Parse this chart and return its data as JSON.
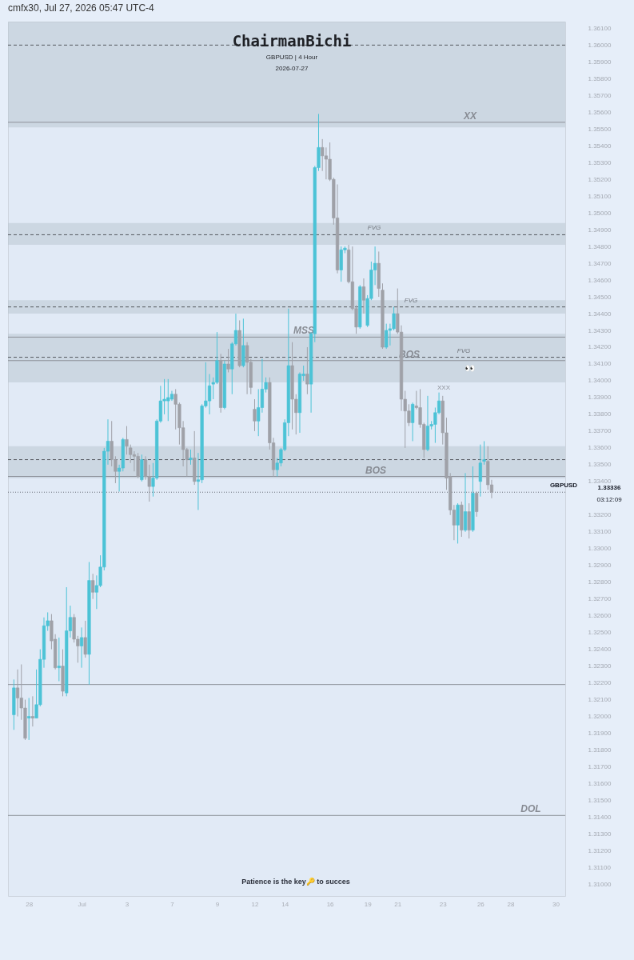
{
  "chart_data": {
    "type": "candlestick",
    "title": "ChairmanBichi",
    "subtitle": "GBPUSD | 4 Hour\n2026-07-27",
    "categories": [
      null,
      null,
      null,
      null,
      "28",
      null,
      null,
      null,
      null,
      null,
      null,
      null,
      null,
      null,
      null,
      null,
      null,
      null,
      "Jul",
      null,
      null,
      null,
      null,
      null,
      null,
      null,
      null,
      null,
      null,
      null,
      "3",
      null,
      null,
      null,
      null,
      null,
      null,
      null,
      null,
      null,
      null,
      null,
      "7",
      null,
      null,
      null,
      null,
      null,
      null,
      null,
      null,
      null,
      null,
      null,
      "9",
      null,
      null,
      null,
      null,
      null,
      null,
      null,
      null,
      null,
      "12",
      null,
      null,
      null,
      null,
      null,
      null,
      null,
      "14",
      null,
      null,
      null,
      null,
      null,
      null,
      null,
      null,
      null,
      null,
      null,
      "16",
      null,
      null,
      null,
      null,
      null,
      null,
      null,
      null,
      null,
      "19",
      null,
      null,
      null,
      null,
      null,
      null,
      null,
      "21",
      null,
      null,
      null,
      null,
      null,
      null,
      null,
      null,
      null,
      null,
      null,
      "23",
      null,
      null,
      null,
      null,
      null,
      null,
      null,
      null,
      null,
      "26",
      null,
      null,
      null,
      null,
      null,
      null,
      null,
      "28",
      null,
      null,
      null,
      null,
      null,
      null,
      null,
      null,
      null,
      null,
      null,
      "30",
      null
    ],
    "ohlc": [
      [
        1.3201,
        1.3222,
        1.3192,
        1.3217
      ],
      [
        1.3217,
        1.3228,
        1.32,
        1.3211
      ],
      [
        1.3211,
        1.3231,
        1.3198,
        1.3205
      ],
      [
        1.3205,
        1.321,
        1.3186,
        1.3187
      ],
      [
        1.3199,
        1.3211,
        1.3186,
        1.32
      ],
      [
        1.32,
        1.3212,
        1.3194,
        1.3199
      ],
      [
        1.3199,
        1.3228,
        1.3199,
        1.3207
      ],
      [
        1.3207,
        1.324,
        1.3206,
        1.3234
      ],
      [
        1.3234,
        1.3259,
        1.3229,
        1.3254
      ],
      [
        1.3254,
        1.3262,
        1.3251,
        1.3257
      ],
      [
        1.3257,
        1.3261,
        1.324,
        1.3245
      ],
      [
        1.3246,
        1.3249,
        1.3228,
        1.3229
      ],
      [
        1.3229,
        1.3247,
        1.3221,
        1.323
      ],
      [
        1.323,
        1.324,
        1.3212,
        1.3215
      ],
      [
        1.3214,
        1.3277,
        1.3212,
        1.3251
      ],
      [
        1.3251,
        1.3266,
        1.3247,
        1.3259
      ],
      [
        1.3259,
        1.3261,
        1.3244,
        1.3246
      ],
      [
        1.3246,
        1.3248,
        1.3232,
        1.3242
      ],
      [
        1.3242,
        1.3253,
        1.3229,
        1.3247
      ],
      [
        1.3247,
        1.3257,
        1.3235,
        1.3237
      ],
      [
        1.3237,
        1.3292,
        1.3219,
        1.3281
      ],
      [
        1.3281,
        1.3285,
        1.327,
        1.3274
      ],
      [
        1.3274,
        1.3284,
        1.3264,
        1.3278
      ],
      [
        1.3278,
        1.3296,
        1.3277,
        1.3289
      ],
      [
        1.3289,
        1.336,
        1.3287,
        1.3358
      ],
      [
        1.3358,
        1.3377,
        1.335,
        1.3364
      ],
      [
        1.3364,
        1.3376,
        1.3349,
        1.3353
      ],
      [
        1.3353,
        1.3355,
        1.3339,
        1.3346
      ],
      [
        1.3346,
        1.335,
        1.3334,
        1.3348
      ],
      [
        1.3348,
        1.3366,
        1.3346,
        1.3365
      ],
      [
        1.3365,
        1.3373,
        1.3356,
        1.3361
      ],
      [
        1.336,
        1.3362,
        1.3351,
        1.3356
      ],
      [
        1.3356,
        1.3358,
        1.3346,
        1.3355
      ],
      [
        1.3355,
        1.3357,
        1.3342,
        1.3343
      ],
      [
        1.3341,
        1.3356,
        1.334,
        1.3353
      ],
      [
        1.3353,
        1.3355,
        1.3341,
        1.3343
      ],
      [
        1.3343,
        1.335,
        1.3328,
        1.3337
      ],
      [
        1.3337,
        1.3351,
        1.3331,
        1.3342
      ],
      [
        1.3342,
        1.3377,
        1.3341,
        1.3376
      ],
      [
        1.3376,
        1.3397,
        1.3375,
        1.3388
      ],
      [
        1.3388,
        1.3401,
        1.338,
        1.3389
      ],
      [
        1.3388,
        1.3401,
        1.3376,
        1.339
      ],
      [
        1.3389,
        1.3394,
        1.3388,
        1.3392
      ],
      [
        1.3392,
        1.3395,
        1.3371,
        1.3386
      ],
      [
        1.3386,
        1.3387,
        1.3362,
        1.3372
      ],
      [
        1.3372,
        1.3376,
        1.3349,
        1.3359
      ],
      [
        1.3359,
        1.336,
        1.3343,
        1.3353
      ],
      [
        1.3353,
        1.3359,
        1.335,
        1.3354
      ],
      [
        1.3354,
        1.337,
        1.3338,
        1.334
      ],
      [
        1.334,
        1.3357,
        1.3323,
        1.3341
      ],
      [
        1.3341,
        1.3386,
        1.3339,
        1.3385
      ],
      [
        1.3385,
        1.3411,
        1.3384,
        1.3388
      ],
      [
        1.3388,
        1.3404,
        1.338,
        1.3397
      ],
      [
        1.3398,
        1.3402,
        1.3389,
        1.3399
      ],
      [
        1.3399,
        1.3429,
        1.3398,
        1.3412
      ],
      [
        1.3412,
        1.3416,
        1.3381,
        1.3384
      ],
      [
        1.3384,
        1.3412,
        1.3383,
        1.341
      ],
      [
        1.341,
        1.3419,
        1.3405,
        1.3407
      ],
      [
        1.3407,
        1.3423,
        1.3392,
        1.3422
      ],
      [
        1.3422,
        1.344,
        1.3421,
        1.343
      ],
      [
        1.343,
        1.3436,
        1.3408,
        1.3409
      ],
      [
        1.3409,
        1.3437,
        1.3408,
        1.3421
      ],
      [
        1.3421,
        1.3423,
        1.3392,
        1.3411
      ],
      [
        1.3411,
        1.3413,
        1.3392,
        1.3396
      ],
      [
        1.3383,
        1.3389,
        1.337,
        1.3376
      ],
      [
        1.3376,
        1.3395,
        1.3367,
        1.3384
      ],
      [
        1.3384,
        1.3413,
        1.3381,
        1.3395
      ],
      [
        1.3395,
        1.3402,
        1.3393,
        1.3399
      ],
      [
        1.3399,
        1.3402,
        1.3359,
        1.3363
      ],
      [
        1.3363,
        1.3366,
        1.3343,
        1.3347
      ],
      [
        1.3347,
        1.3354,
        1.3343,
        1.3351
      ],
      [
        1.3351,
        1.336,
        1.3349,
        1.3359
      ],
      [
        1.3359,
        1.3377,
        1.3358,
        1.3375
      ],
      [
        1.3375,
        1.3443,
        1.3367,
        1.3409
      ],
      [
        1.3409,
        1.3423,
        1.3371,
        1.3389
      ],
      [
        1.3389,
        1.3392,
        1.3368,
        1.3381
      ],
      [
        1.3381,
        1.3405,
        1.3369,
        1.3404
      ],
      [
        1.3403,
        1.3409,
        1.34,
        1.3404
      ],
      [
        1.3404,
        1.342,
        1.3392,
        1.3398
      ],
      [
        1.3398,
        1.3429,
        1.3381,
        1.3428
      ],
      [
        1.3428,
        1.3528,
        1.3423,
        1.3527
      ],
      [
        1.3527,
        1.3559,
        1.3525,
        1.3539
      ],
      [
        1.3539,
        1.3544,
        1.3525,
        1.3534
      ],
      [
        1.3534,
        1.3539,
        1.352,
        1.3532
      ],
      [
        1.3532,
        1.3542,
        1.3519,
        1.352
      ],
      [
        1.352,
        1.3521,
        1.3493,
        1.3497
      ],
      [
        1.3497,
        1.3517,
        1.3464,
        1.3466
      ],
      [
        1.3466,
        1.348,
        1.3459,
        1.3478
      ],
      [
        1.3478,
        1.348,
        1.3476,
        1.3479
      ],
      [
        1.3478,
        1.3481,
        1.3458,
        1.3459
      ],
      [
        1.3459,
        1.348,
        1.3442,
        1.3443
      ],
      [
        1.3443,
        1.3445,
        1.3428,
        1.3432
      ],
      [
        1.3432,
        1.3457,
        1.3431,
        1.3456
      ],
      [
        1.3456,
        1.3461,
        1.344,
        1.3448
      ],
      [
        1.3433,
        1.3451,
        1.3432,
        1.3449
      ],
      [
        1.3449,
        1.3471,
        1.3448,
        1.3466
      ],
      [
        1.3466,
        1.348,
        1.3457,
        1.347
      ],
      [
        1.347,
        1.3477,
        1.345,
        1.3455
      ],
      [
        1.3454,
        1.3458,
        1.3419,
        1.342
      ],
      [
        1.342,
        1.3434,
        1.3419,
        1.343
      ],
      [
        1.343,
        1.3434,
        1.3421,
        1.3431
      ],
      [
        1.3431,
        1.3444,
        1.343,
        1.344
      ],
      [
        1.344,
        1.3455,
        1.3428,
        1.3429
      ],
      [
        1.3429,
        1.3433,
        1.3382,
        1.3389
      ],
      [
        1.3389,
        1.3394,
        1.336,
        1.3382
      ],
      [
        1.3382,
        1.3386,
        1.3373,
        1.3375
      ],
      [
        1.3375,
        1.3387,
        1.3364,
        1.3386
      ],
      [
        1.3385,
        1.3394,
        1.3383,
        1.3384
      ],
      [
        1.3384,
        1.3395,
        1.3372,
        1.3374
      ],
      [
        1.3374,
        1.3375,
        1.3354,
        1.3359
      ],
      [
        1.3359,
        1.3391,
        1.3358,
        1.3373
      ],
      [
        1.3373,
        1.3376,
        1.3371,
        1.3374
      ],
      [
        1.3374,
        1.3384,
        1.3363,
        1.3381
      ],
      [
        1.3381,
        1.3393,
        1.338,
        1.3388
      ],
      [
        1.3388,
        1.3391,
        1.3362,
        1.3369
      ],
      [
        1.3369,
        1.3378,
        1.3335,
        1.3342
      ],
      [
        1.3343,
        1.3345,
        1.332,
        1.3323
      ],
      [
        1.3323,
        1.3326,
        1.3305,
        1.3314
      ],
      [
        1.3314,
        1.3327,
        1.3303,
        1.3326
      ],
      [
        1.3326,
        1.3328,
        1.3307,
        1.3311
      ],
      [
        1.3311,
        1.3345,
        1.331,
        1.3322
      ],
      [
        1.3322,
        1.3327,
        1.3306,
        1.3311
      ],
      [
        1.3311,
        1.3349,
        1.331,
        1.3333
      ],
      [
        1.3333,
        1.3334,
        1.3319,
        1.3322
      ],
      [
        1.334,
        1.3362,
        1.3331,
        1.3351
      ],
      [
        1.3352,
        1.3364,
        1.335,
        1.3353
      ],
      [
        1.3352,
        1.3361,
        1.3335,
        1.3338
      ],
      [
        1.3338,
        1.3341,
        1.333,
        1.33336
      ],
      null,
      null,
      null,
      null,
      null,
      null,
      null,
      null,
      null,
      null,
      null,
      null,
      null,
      null,
      null,
      null,
      null,
      null
    ],
    "colors": [
      "#4cc3d6",
      "#9fa1a8",
      "#9fa1a8",
      "#9fa1a8",
      "#4cc3d6",
      "#9fa1a8",
      "#4cc3d6",
      "#4cc3d6",
      "#4cc3d6",
      "#4cc3d6",
      "#9fa1a8",
      "#9fa1a8",
      "#4cc3d6",
      "#9fa1a8",
      "#4cc3d6",
      "#4cc3d6",
      "#9fa1a8",
      "#9fa1a8",
      "#4cc3d6",
      "#9fa1a8",
      "#4cc3d6",
      "#9fa1a8",
      "#4cc3d6",
      "#4cc3d6",
      "#4cc3d6",
      "#4cc3d6",
      "#9fa1a8",
      "#9fa1a8",
      "#4cc3d6",
      "#4cc3d6",
      "#9fa1a8",
      "#9fa1a8",
      "#9fa1a8",
      "#9fa1a8",
      "#4cc3d6",
      "#9fa1a8",
      "#9fa1a8",
      "#4cc3d6",
      "#4cc3d6",
      "#4cc3d6",
      "#4cc3d6",
      "#4cc3d6",
      "#4cc3d6",
      "#9fa1a8",
      "#9fa1a8",
      "#9fa1a8",
      "#9fa1a8",
      "#4cc3d6",
      "#9fa1a8",
      "#4cc3d6",
      "#4cc3d6",
      "#4cc3d6",
      "#4cc3d6",
      "#4cc3d6",
      "#4cc3d6",
      "#9fa1a8",
      "#4cc3d6",
      "#9fa1a8",
      "#4cc3d6",
      "#4cc3d6",
      "#9fa1a8",
      "#4cc3d6",
      "#9fa1a8",
      "#9fa1a8",
      "#9fa1a8",
      "#4cc3d6",
      "#4cc3d6",
      "#4cc3d6",
      "#9fa1a8",
      "#9fa1a8",
      "#4cc3d6",
      "#4cc3d6",
      "#4cc3d6",
      "#4cc3d6",
      "#9fa1a8",
      "#9fa1a8",
      "#4cc3d6",
      "#4cc3d6",
      "#9fa1a8",
      "#4cc3d6",
      "#4cc3d6",
      "#4cc3d6",
      "#9fa1a8",
      "#9fa1a8",
      "#9fa1a8",
      "#9fa1a8",
      "#9fa1a8",
      "#4cc3d6",
      "#4cc3d6",
      "#9fa1a8",
      "#9fa1a8",
      "#9fa1a8",
      "#4cc3d6",
      "#9fa1a8",
      "#4cc3d6",
      "#4cc3d6",
      "#4cc3d6",
      "#9fa1a8",
      "#9fa1a8",
      "#4cc3d6",
      "#4cc3d6",
      "#4cc3d6",
      "#9fa1a8",
      "#9fa1a8",
      "#9fa1a8",
      "#9fa1a8",
      "#4cc3d6",
      "#9fa1a8",
      "#9fa1a8",
      "#9fa1a8",
      "#4cc3d6",
      "#4cc3d6",
      "#4cc3d6",
      "#4cc3d6",
      "#9fa1a8",
      "#9fa1a8",
      "#9fa1a8",
      "#9fa1a8",
      "#4cc3d6",
      "#9fa1a8",
      "#4cc3d6",
      "#9fa1a8",
      "#4cc3d6",
      "#9fa1a8",
      "#4cc3d6",
      "#4cc3d6",
      "#9fa1a8",
      "#9fa1a8",
      null,
      null,
      null,
      null,
      null,
      null,
      null,
      null,
      null,
      null,
      null,
      null,
      null,
      null,
      null,
      null,
      null,
      null
    ],
    "ylim": [
      1.3093,
      1.3614
    ],
    "yticks": [
      {
        "value": 1.31,
        "label": "1.31000"
      },
      {
        "value": 1.311,
        "label": "1.31100"
      },
      {
        "value": 1.312,
        "label": "1.31200"
      },
      {
        "value": 1.313,
        "label": "1.31300"
      },
      {
        "value": 1.314,
        "label": "1.31400"
      },
      {
        "value": 1.315,
        "label": "1.31500"
      },
      {
        "value": 1.316,
        "label": "1.31600"
      },
      {
        "value": 1.317,
        "label": "1.31700"
      },
      {
        "value": 1.318,
        "label": "1.31800"
      },
      {
        "value": 1.319,
        "label": "1.31900"
      },
      {
        "value": 1.32,
        "label": "1.32000"
      },
      {
        "value": 1.321,
        "label": "1.32100"
      },
      {
        "value": 1.322,
        "label": "1.32200"
      },
      {
        "value": 1.323,
        "label": "1.32300"
      },
      {
        "value": 1.324,
        "label": "1.32400"
      },
      {
        "value": 1.325,
        "label": "1.32500"
      },
      {
        "value": 1.326,
        "label": "1.32600"
      },
      {
        "value": 1.327,
        "label": "1.32700"
      },
      {
        "value": 1.328,
        "label": "1.32800"
      },
      {
        "value": 1.329,
        "label": "1.32900"
      },
      {
        "value": 1.33,
        "label": "1.33000"
      },
      {
        "value": 1.331,
        "label": "1.33100"
      },
      {
        "value": 1.332,
        "label": "1.33200"
      },
      {
        "value": 1.334,
        "label": "1.33400"
      },
      {
        "value": 1.335,
        "label": "1.33500"
      },
      {
        "value": 1.336,
        "label": "1.33600"
      },
      {
        "value": 1.337,
        "label": "1.33700"
      },
      {
        "value": 1.338,
        "label": "1.33800"
      },
      {
        "value": 1.339,
        "label": "1.33900"
      },
      {
        "value": 1.34,
        "label": "1.34000"
      },
      {
        "value": 1.341,
        "label": "1.34100"
      },
      {
        "value": 1.342,
        "label": "1.34200"
      },
      {
        "value": 1.343,
        "label": "1.34300"
      },
      {
        "value": 1.344,
        "label": "1.34400"
      },
      {
        "value": 1.345,
        "label": "1.34500"
      },
      {
        "value": 1.346,
        "label": "1.34600"
      },
      {
        "value": 1.347,
        "label": "1.34700"
      },
      {
        "value": 1.348,
        "label": "1.34800"
      },
      {
        "value": 1.349,
        "label": "1.34900"
      },
      {
        "value": 1.35,
        "label": "1.35000"
      },
      {
        "value": 1.351,
        "label": "1.35100"
      },
      {
        "value": 1.352,
        "label": "1.35200"
      },
      {
        "value": 1.353,
        "label": "1.35300"
      },
      {
        "value": 1.354,
        "label": "1.35400"
      },
      {
        "value": 1.355,
        "label": "1.35500"
      },
      {
        "value": 1.356,
        "label": "1.35600"
      },
      {
        "value": 1.357,
        "label": "1.35700"
      },
      {
        "value": 1.358,
        "label": "1.35800"
      },
      {
        "value": 1.359,
        "label": "1.35900"
      },
      {
        "value": 1.36,
        "label": "1.36000"
      },
      {
        "value": 1.361,
        "label": "1.36100"
      }
    ],
    "grid": false,
    "bands": [
      {
        "axis": "y",
        "from": 1.3551,
        "to": 1.3614,
        "label": null,
        "color": "#bcc6d2"
      },
      {
        "axis": "y",
        "from": 1.3481,
        "to": 1.3494,
        "label": null,
        "color": "#bcc6d2"
      },
      {
        "axis": "y",
        "from": 1.344,
        "to": 1.3448,
        "label": null,
        "color": "#bcc6d2"
      },
      {
        "axis": "y",
        "from": 1.3399,
        "to": 1.3428,
        "label": null,
        "color": "#bcc6d2"
      },
      {
        "axis": "y",
        "from": 1.3342,
        "to": 1.3361,
        "label": null,
        "color": "#bcc6d2"
      }
    ],
    "ref_lines": [
      {
        "axis": "y",
        "value": 1.36,
        "label": null,
        "color": "#55595f",
        "line_style": "dashed"
      },
      {
        "axis": "y",
        "value": 1.3554,
        "label": "XX",
        "color": "#8d9199",
        "line_style": "solid"
      },
      {
        "axis": "y",
        "value": 1.3487,
        "label": "FVG",
        "color": "#55595f",
        "line_style": "dashed"
      },
      {
        "axis": "y",
        "value": 1.3444,
        "label": "FVG",
        "color": "#55595f",
        "line_style": "dashed"
      },
      {
        "axis": "y",
        "value": 1.3426,
        "label": "MSS",
        "color": "#8d9199",
        "line_style": "solid"
      },
      {
        "axis": "y",
        "value": 1.3414,
        "label": "FVG",
        "color": "#55595f",
        "line_style": "dashed"
      },
      {
        "axis": "y",
        "value": 1.3412,
        "label": "BOS",
        "color": "#8d9199",
        "line_style": "solid"
      },
      {
        "axis": "y",
        "value": 1.3353,
        "label": null,
        "color": "#55595f",
        "line_style": "dashed"
      },
      {
        "axis": "y",
        "value": 1.3343,
        "label": "BOS",
        "color": "#8d9199",
        "line_style": "solid"
      },
      {
        "axis": "y",
        "value": 1.33336,
        "label": "GBPUSD",
        "color": "#6b7079",
        "line_style": "dotted"
      },
      {
        "axis": "y",
        "value": 1.3219,
        "label": null,
        "color": "#8d9199",
        "line_style": "solid"
      },
      {
        "axis": "y",
        "value": 1.3141,
        "label": "DOL",
        "color": "#8d9199",
        "line_style": "solid"
      }
    ],
    "annotations": [
      "cmfx30, Jul 27, 2026 05:47 UTC-4",
      "Patience is the key🔑 to succes",
      "1.33336",
      "03:12:09",
      "XXX",
      "👀"
    ]
  }
}
